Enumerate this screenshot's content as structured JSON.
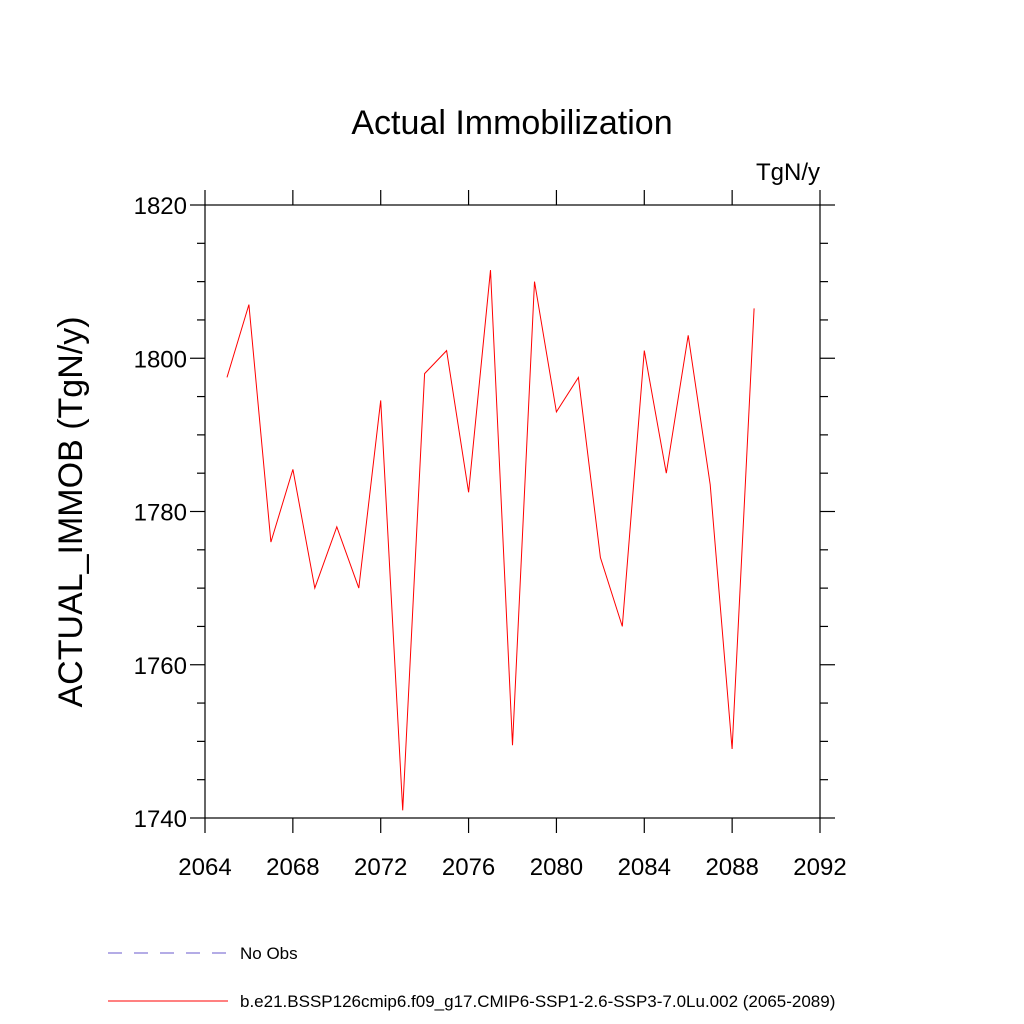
{
  "chart_data": {
    "type": "line",
    "title": "Actual Immobilization",
    "units": "TgN/y",
    "xlabel": "",
    "ylabel": "ACTUAL_IMMOB  (TgN/y)",
    "xlim": [
      2064,
      2092
    ],
    "ylim": [
      1740,
      1820
    ],
    "x_ticks": [
      "2064",
      "2068",
      "2072",
      "2076",
      "2080",
      "2084",
      "2088",
      "2092"
    ],
    "y_ticks": [
      "1740",
      "1760",
      "1780",
      "1800",
      "1820"
    ],
    "grid": false,
    "series": [
      {
        "name": "b.e21.BSSP126cmip6.f09_g17.CMIP6-SSP1-2.6-SSP3-7.0Lu.002 (2065-2089)",
        "color": "#ff0000",
        "x": [
          2065,
          2066,
          2067,
          2068,
          2069,
          2070,
          2071,
          2072,
          2073,
          2074,
          2075,
          2076,
          2077,
          2078,
          2079,
          2080,
          2081,
          2082,
          2083,
          2084,
          2085,
          2086,
          2087,
          2088,
          2089
        ],
        "values": [
          1797.5,
          1807.0,
          1776.0,
          1785.5,
          1770.0,
          1778.0,
          1770.0,
          1794.5,
          1741.0,
          1798.0,
          1801.0,
          1782.5,
          1811.5,
          1749.5,
          1810.0,
          1793.0,
          1797.5,
          1774.0,
          1765.0,
          1801.0,
          1785.0,
          1803.0,
          1783.5,
          1749.0,
          1806.5
        ]
      }
    ],
    "legend": [
      {
        "label": "No Obs",
        "color": "#6a5acd",
        "style": "dashed"
      },
      {
        "label": "b.e21.BSSP126cmip6.f09_g17.CMIP6-SSP1-2.6-SSP3-7.0Lu.002 (2065-2089)",
        "color": "#ff0000",
        "style": "solid"
      }
    ]
  }
}
